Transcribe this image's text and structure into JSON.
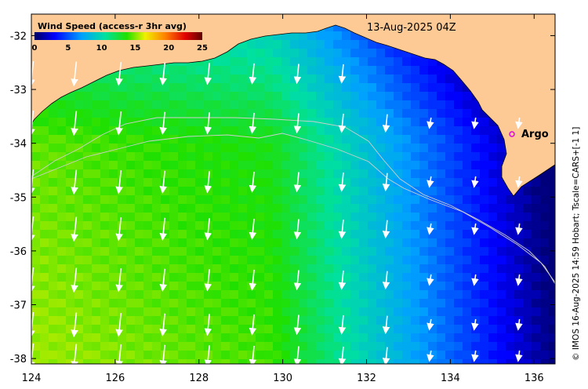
{
  "map": {
    "date_label": "13-Aug-2025 04Z",
    "credit": "© IMOS 16-Aug-2025 14:59 Hobart; Tscale=CARS+[-1 1]",
    "lon_ticks": [
      "124",
      "126",
      "128",
      "130",
      "132",
      "134",
      "136"
    ],
    "lat_ticks": [
      "-32",
      "-33",
      "-34",
      "-35",
      "-36",
      "-37",
      "-38"
    ],
    "lon_range": [
      124,
      136.5
    ],
    "lat_range": [
      -38.1,
      -31.6
    ],
    "colors": {
      "land": "#fdc994",
      "arrow": "#ffffff",
      "contour": "#c8c8c8",
      "argo_marker": "#e000e0"
    }
  },
  "colorbar": {
    "title": "Wind Speed (access-r 3hr avg)",
    "ticks": [
      "0",
      "5",
      "10",
      "15",
      "20",
      "25"
    ],
    "range": [
      0,
      25
    ]
  },
  "markers": [
    {
      "label": "Argo",
      "lon": 135.5,
      "lat": -33.6
    }
  ]
}
